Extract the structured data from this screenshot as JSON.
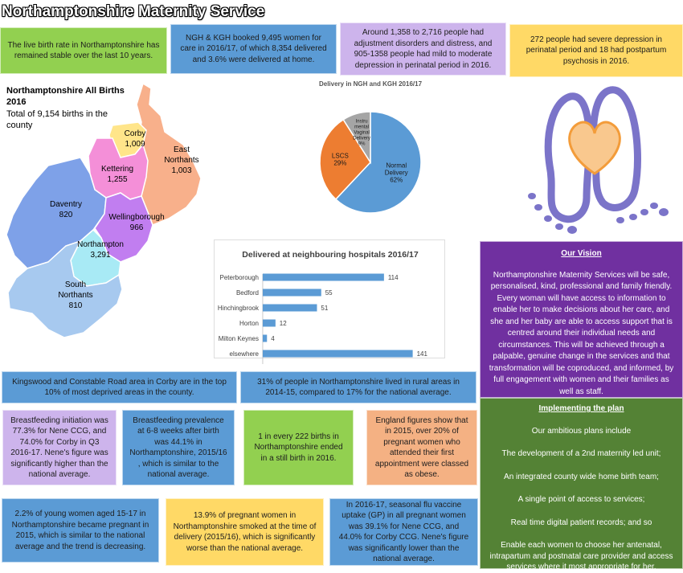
{
  "title": "Northamptonshire Maternity Service",
  "facts": {
    "live_birth": "The live birth rate in Northamptonshire has remained stable over the last 10 years.",
    "booked": "NGH & KGH booked 9,495 women for care in 2016/17, of which 8,354 delivered and 3.6% were delivered at home.",
    "adjustment": "Around 1,358 to 2,716 people had adjustment disorders and distress, and 905-1358 people had mild to moderate depression in perinatal period in 2016.",
    "severe": "272 people had severe depression in perinatal period and 18 had postpartum psychosis in 2016.",
    "deprived": "Kingswood and Constable Road area in Corby are in the top 10% of most deprived areas in the county.",
    "rural": "31% of people in Northamptonshire lived in rural areas in 2014-15, compared to 17% for the national average.",
    "breast_init": "Breastfeeding initiation was 77.3% for Nene CCG, and 74.0% for Corby in Q3 2016-17. Nene's figure was significantly higher than the national average.",
    "breast_prev": "Breastfeeding prevalence at 6-8 weeks after birth was 44.1% in Northamptonshire, 2015/16 , which is similar to the national average.",
    "stillbirth": "1 in every 222 births in Northamptonshire ended in a still birth in 2016.",
    "obese": "England figures show that in 2015, over 20% of pregnant women who attended their first appointment were classed as obese.",
    "pregnant": "2.2% of young women aged 15-17 in Northamptonshire became pregnant in 2015, which is similar to the national average and the trend is decreasing.",
    "smoked": "13.9% of pregnant women in Northamptonshire smoked at the time of delivery (2015/16), which is significantly worse than the national average.",
    "flu": "In 2016-17, seasonal flu vaccine uptake (GP) in all pregnant women was 39.1% for Nene CCG, and 44.0% for Corby CCG. Nene's figure was significantly lower than the national average."
  },
  "map": {
    "title": "Northamptonshire All Births 2016",
    "subtitle": "Total of 9,154 births in the county",
    "areas": [
      {
        "name": "Corby",
        "value": "1,009",
        "color": "#ffe58a"
      },
      {
        "name": "East Northants",
        "line1": "East",
        "line2": "Northants",
        "value": "1,003",
        "color": "#f8b08b"
      },
      {
        "name": "Kettering",
        "value": "1,255",
        "color": "#f48fd8"
      },
      {
        "name": "Daventry",
        "value": "820",
        "color": "#7ea1e8"
      },
      {
        "name": "Wellingborough",
        "value": "966",
        "color": "#c17ef0"
      },
      {
        "name": "Northampton",
        "value": "3,291",
        "color": "#a8eaf5"
      },
      {
        "name": "South Northants",
        "line1": "South",
        "line2": "Northants",
        "value": "810",
        "color": "#a7c9ef"
      }
    ]
  },
  "vision": {
    "heading": "Our Vision",
    "text": "Northamptonshire Maternity Services will be safe, personalised, kind, professional and family friendly. Every woman will have access to information to enable her to make decisions about her care, and she and her baby are able to access support that is centred around their individual needs and circumstances.  This will be achieved through a palpable, genuine change in the services and that transformation will be coproduced, and informed, by full engagement with women and their families as well as staff."
  },
  "plan": {
    "heading": "Implementing the plan",
    "items": [
      "Our ambitious plans include",
      "The development of a 2nd maternity led unit;",
      "An integrated county wide home birth team;",
      "A single point of access to services;",
      "Real time digital patient records; and so",
      "Enable each women to choose her antenatal, intrapartum and postnatal care provider and access services where it most appropriate for her."
    ]
  },
  "chart_data": [
    {
      "type": "pie",
      "title": "Delivery in NGH and KGH 2016/17",
      "labels": [
        "Normal Delivery",
        "LSCS",
        "Instrumental Vaginal Delivery"
      ],
      "display_labels": [
        [
          "Normal",
          "Delivery",
          "62%"
        ],
        [
          "LSCS",
          "29%"
        ],
        [
          "Instru",
          "mental",
          "Vaginal",
          "Delivery",
          "9%"
        ]
      ],
      "values": [
        62,
        29,
        9
      ],
      "colors": [
        "#5b9bd5",
        "#ed7d31",
        "#a5a5a5"
      ]
    },
    {
      "type": "bar",
      "orientation": "horizontal",
      "title": "Delivered at neighbouring hospitals 2016/17",
      "categories": [
        "Peterborough",
        "Bedford",
        "Hinchingbrook",
        "Horton",
        "Milton Keynes",
        "elsewhere"
      ],
      "values": [
        114,
        55,
        51,
        12,
        4,
        141
      ],
      "color": "#5b9bd5",
      "xlim": [
        0,
        141
      ]
    }
  ]
}
